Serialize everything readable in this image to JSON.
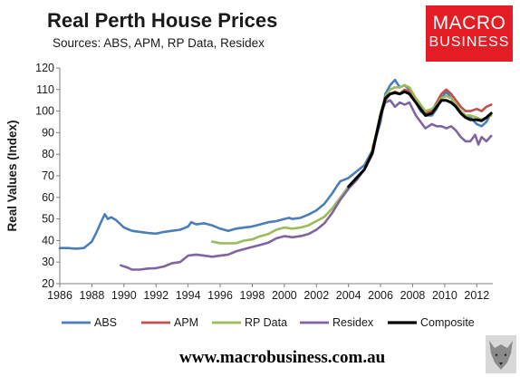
{
  "header": {
    "title": "Real Perth House Prices",
    "subtitle": "Sources: ABS, APM, RP Data, Residex"
  },
  "logo": {
    "line1": "MACRO",
    "line2": "BUSINESS",
    "color": "#e31d23"
  },
  "footer": {
    "url": "www.macrobusiness.com.au"
  },
  "chart_data": {
    "type": "line",
    "ylabel": "Real Values (Index)",
    "xlabel": "",
    "xlim": [
      1986,
      2013
    ],
    "ylim": [
      20,
      120
    ],
    "xticks": [
      1986,
      1988,
      1990,
      1992,
      1994,
      1996,
      1998,
      2000,
      2002,
      2004,
      2006,
      2008,
      2010,
      2012
    ],
    "yticks": [
      20,
      30,
      40,
      50,
      60,
      70,
      80,
      90,
      100,
      110,
      120
    ],
    "grid": false,
    "legend": "bottom",
    "series": [
      {
        "name": "ABS",
        "color": "#4a7ebb",
        "points": [
          [
            1986,
            36.5
          ],
          [
            1986.5,
            36.5
          ],
          [
            1987,
            36.2
          ],
          [
            1987.5,
            36.5
          ],
          [
            1988,
            39.5
          ],
          [
            1988.3,
            44
          ],
          [
            1988.6,
            49
          ],
          [
            1988.8,
            52.2
          ],
          [
            1989,
            50
          ],
          [
            1989.2,
            50.8
          ],
          [
            1989.5,
            49.5
          ],
          [
            1990,
            46
          ],
          [
            1990.5,
            44.5
          ],
          [
            1991,
            44
          ],
          [
            1991.5,
            43.5
          ],
          [
            1992,
            43.2
          ],
          [
            1992.5,
            44
          ],
          [
            1993,
            44.5
          ],
          [
            1993.5,
            45
          ],
          [
            1994,
            46.5
          ],
          [
            1994.2,
            48.5
          ],
          [
            1994.5,
            47.5
          ],
          [
            1995,
            48
          ],
          [
            1995.5,
            47
          ],
          [
            1996,
            45.5
          ],
          [
            1996.5,
            44.5
          ],
          [
            1997,
            45.5
          ],
          [
            1997.5,
            46
          ],
          [
            1998,
            46.5
          ],
          [
            1998.5,
            47.5
          ],
          [
            1999,
            48.5
          ],
          [
            1999.5,
            49
          ],
          [
            2000,
            50
          ],
          [
            2000.3,
            50.5
          ],
          [
            2000.5,
            50
          ],
          [
            2001,
            50.5
          ],
          [
            2001.5,
            52
          ],
          [
            2002,
            54
          ],
          [
            2002.5,
            57
          ],
          [
            2003,
            62
          ],
          [
            2003.3,
            65.5
          ],
          [
            2003.5,
            67.5
          ],
          [
            2004,
            69
          ],
          [
            2004.5,
            72
          ],
          [
            2005,
            75
          ],
          [
            2005.5,
            82
          ],
          [
            2006,
            95
          ],
          [
            2006.3,
            108
          ],
          [
            2006.6,
            112
          ],
          [
            2006.9,
            114.5
          ],
          [
            2007.2,
            111
          ],
          [
            2007.5,
            112
          ],
          [
            2007.8,
            110
          ],
          [
            2008.2,
            104
          ],
          [
            2008.5,
            100
          ],
          [
            2008.8,
            98
          ],
          [
            2009.2,
            98
          ],
          [
            2009.5,
            101
          ],
          [
            2009.8,
            106
          ],
          [
            2010.1,
            109
          ],
          [
            2010.4,
            106
          ],
          [
            2010.7,
            103
          ],
          [
            2011,
            100
          ],
          [
            2011.3,
            98
          ],
          [
            2011.6,
            97
          ],
          [
            2012,
            94
          ],
          [
            2012.3,
            93
          ],
          [
            2012.6,
            95
          ],
          [
            2012.9,
            99
          ]
        ]
      },
      {
        "name": "APM",
        "color": "#c0504d",
        "points": [
          [
            2005.5,
            83
          ],
          [
            2006,
            97
          ],
          [
            2006.3,
            105
          ],
          [
            2006.6,
            108
          ],
          [
            2006.9,
            109
          ],
          [
            2007.2,
            108
          ],
          [
            2007.5,
            110
          ],
          [
            2007.8,
            109
          ],
          [
            2008.2,
            105
          ],
          [
            2008.5,
            102
          ],
          [
            2008.8,
            99
          ],
          [
            2009.2,
            100
          ],
          [
            2009.5,
            104
          ],
          [
            2009.8,
            108
          ],
          [
            2010.1,
            110
          ],
          [
            2010.4,
            108
          ],
          [
            2010.7,
            105
          ],
          [
            2011,
            102
          ],
          [
            2011.3,
            100
          ],
          [
            2011.6,
            100
          ],
          [
            2012,
            101
          ],
          [
            2012.3,
            100
          ],
          [
            2012.6,
            102
          ],
          [
            2012.9,
            103
          ]
        ]
      },
      {
        "name": "RP Data",
        "color": "#9bbb59",
        "points": [
          [
            1995.5,
            39.5
          ],
          [
            1996,
            38.8
          ],
          [
            1996.5,
            38.7
          ],
          [
            1997,
            38.8
          ],
          [
            1997.5,
            40
          ],
          [
            1998,
            40.5
          ],
          [
            1998.5,
            42
          ],
          [
            1999,
            43
          ],
          [
            1999.5,
            45
          ],
          [
            2000,
            46
          ],
          [
            2000.5,
            45.5
          ],
          [
            2001,
            46
          ],
          [
            2001.5,
            47
          ],
          [
            2002,
            49
          ],
          [
            2002.5,
            51
          ],
          [
            2003,
            55
          ],
          [
            2003.5,
            60
          ],
          [
            2004,
            65
          ],
          [
            2004.5,
            69
          ],
          [
            2005,
            73
          ],
          [
            2005.5,
            82
          ],
          [
            2006,
            99
          ],
          [
            2006.3,
            107
          ],
          [
            2006.6,
            110
          ],
          [
            2006.9,
            111
          ],
          [
            2007.2,
            111
          ],
          [
            2007.5,
            112
          ],
          [
            2007.8,
            111
          ],
          [
            2008.2,
            106
          ],
          [
            2008.5,
            103
          ],
          [
            2008.8,
            100
          ],
          [
            2009.2,
            101
          ],
          [
            2009.5,
            103
          ],
          [
            2009.8,
            106
          ],
          [
            2010.1,
            107
          ],
          [
            2010.4,
            106
          ],
          [
            2010.7,
            103
          ],
          [
            2011,
            100
          ],
          [
            2011.3,
            98
          ],
          [
            2011.6,
            98
          ],
          [
            2012,
            97
          ],
          [
            2012.3,
            96
          ],
          [
            2012.6,
            97
          ],
          [
            2012.9,
            98
          ]
        ]
      },
      {
        "name": "Residex",
        "color": "#8064a2",
        "points": [
          [
            1989.8,
            28.5
          ],
          [
            1990.2,
            27.5
          ],
          [
            1990.5,
            26.5
          ],
          [
            1991,
            26.5
          ],
          [
            1991.5,
            27
          ],
          [
            1992,
            27.2
          ],
          [
            1992.5,
            28
          ],
          [
            1993,
            29.5
          ],
          [
            1993.5,
            30
          ],
          [
            1994,
            33
          ],
          [
            1994.5,
            33.5
          ],
          [
            1995,
            33
          ],
          [
            1995.5,
            32.5
          ],
          [
            1996,
            33
          ],
          [
            1996.5,
            33.5
          ],
          [
            1997,
            35
          ],
          [
            1997.5,
            36
          ],
          [
            1998,
            37
          ],
          [
            1998.5,
            38
          ],
          [
            1999,
            39
          ],
          [
            1999.5,
            41
          ],
          [
            2000,
            42
          ],
          [
            2000.5,
            41.5
          ],
          [
            2001,
            42
          ],
          [
            2001.5,
            43
          ],
          [
            2002,
            45
          ],
          [
            2002.5,
            48
          ],
          [
            2003,
            53
          ],
          [
            2003.5,
            59
          ],
          [
            2004,
            64
          ],
          [
            2004.5,
            68
          ],
          [
            2005,
            73
          ],
          [
            2005.5,
            80
          ],
          [
            2006,
            98
          ],
          [
            2006.3,
            104
          ],
          [
            2006.6,
            105
          ],
          [
            2006.9,
            102
          ],
          [
            2007.2,
            104
          ],
          [
            2007.5,
            103
          ],
          [
            2007.8,
            104
          ],
          [
            2008.2,
            98
          ],
          [
            2008.5,
            95
          ],
          [
            2008.8,
            92
          ],
          [
            2009.2,
            94
          ],
          [
            2009.5,
            93
          ],
          [
            2009.8,
            93
          ],
          [
            2010.1,
            92
          ],
          [
            2010.4,
            93
          ],
          [
            2010.7,
            91
          ],
          [
            2011,
            88
          ],
          [
            2011.3,
            86
          ],
          [
            2011.6,
            86
          ],
          [
            2011.9,
            89
          ],
          [
            2012.1,
            84.5
          ],
          [
            2012.3,
            88
          ],
          [
            2012.6,
            86
          ],
          [
            2012.9,
            88.5
          ]
        ]
      },
      {
        "name": "Composite",
        "color": "#000000",
        "points": [
          [
            2004,
            65
          ],
          [
            2004.5,
            69
          ],
          [
            2005,
            73
          ],
          [
            2005.5,
            81
          ],
          [
            2006,
            98
          ],
          [
            2006.3,
            106
          ],
          [
            2006.6,
            108
          ],
          [
            2006.9,
            108.5
          ],
          [
            2007.2,
            108
          ],
          [
            2007.5,
            109
          ],
          [
            2007.8,
            108
          ],
          [
            2008.2,
            104
          ],
          [
            2008.5,
            101
          ],
          [
            2008.8,
            98
          ],
          [
            2009.2,
            99
          ],
          [
            2009.5,
            102
          ],
          [
            2009.8,
            105
          ],
          [
            2010.1,
            105
          ],
          [
            2010.4,
            104
          ],
          [
            2010.7,
            102
          ],
          [
            2011,
            99
          ],
          [
            2011.3,
            97
          ],
          [
            2011.6,
            96
          ],
          [
            2012,
            96
          ],
          [
            2012.3,
            95.5
          ],
          [
            2012.6,
            97
          ],
          [
            2012.9,
            99
          ]
        ]
      }
    ]
  }
}
